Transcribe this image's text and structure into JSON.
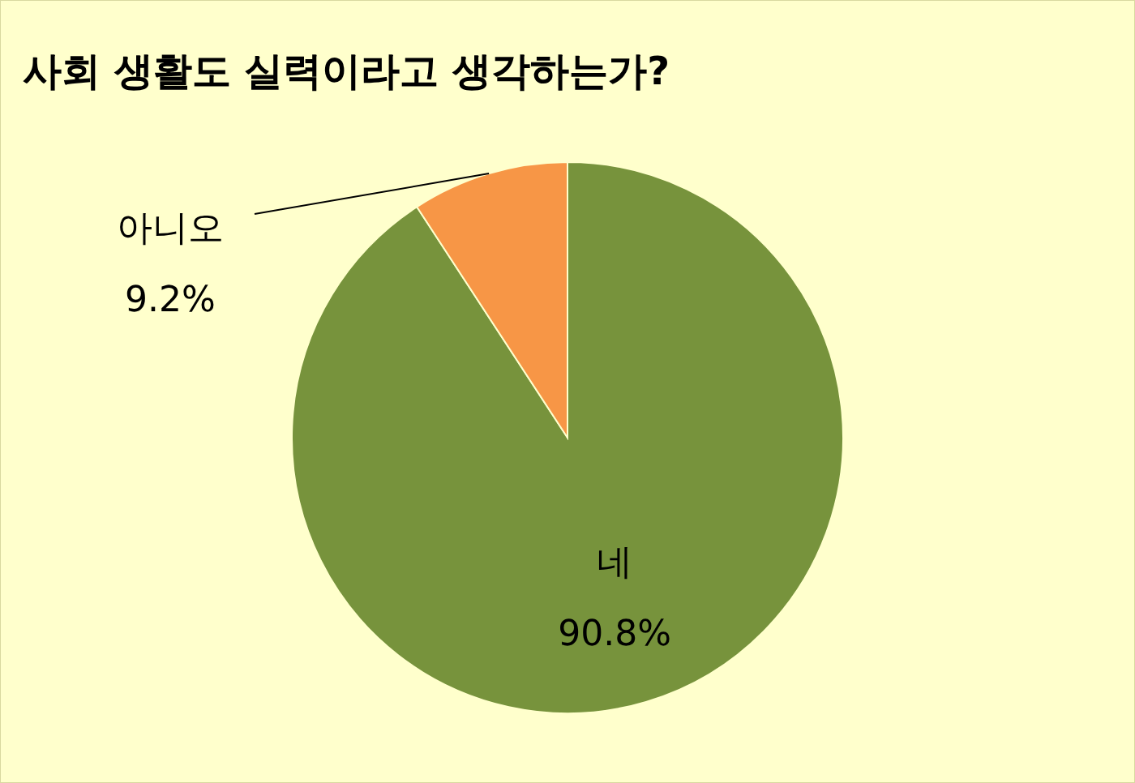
{
  "chart_data": {
    "type": "pie",
    "title": "사회 생활도 실력이라고 생각하는가?",
    "categories": [
      "네",
      "아니오"
    ],
    "values": [
      90.8,
      9.2
    ],
    "colors": [
      "#77933c",
      "#f79646"
    ],
    "value_labels": [
      "90.8%",
      "9.2%"
    ],
    "legend": false
  }
}
